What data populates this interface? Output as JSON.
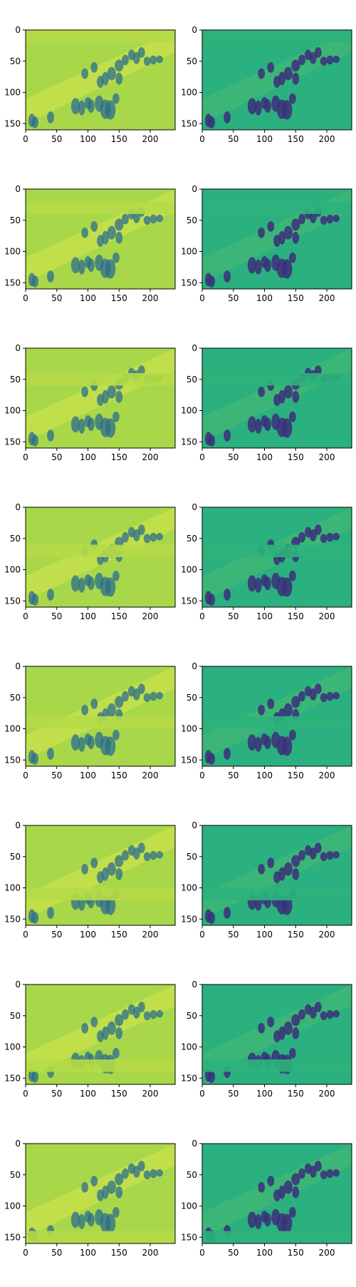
{
  "figure": {
    "rows": 8,
    "cols": 2
  },
  "chart_data": {
    "type": "heatmap",
    "grid": {
      "rows": 8,
      "cols": 2
    },
    "panels_common": {
      "x_ticks": [
        0,
        50,
        100,
        150,
        200
      ],
      "y_ticks": [
        0,
        50,
        100,
        150
      ],
      "xlim": [
        0,
        240
      ],
      "ylim": [
        0,
        160
      ],
      "image_width": 240,
      "image_height": 160,
      "colormap": "viridis"
    },
    "columns": [
      {
        "kind": "reconstruction",
        "base_color": "#a8d84a",
        "figure_color": "#2c6e8e"
      },
      {
        "kind": "residual",
        "base_color": "#2bb07f",
        "figure_color": "#3b2f7a"
      }
    ],
    "masked_band_y": [
      [
        0,
        20
      ],
      [
        20,
        40
      ],
      [
        40,
        60
      ],
      [
        60,
        80
      ],
      [
        80,
        100
      ],
      [
        100,
        120
      ],
      [
        120,
        140
      ],
      [
        140,
        160
      ]
    ]
  }
}
